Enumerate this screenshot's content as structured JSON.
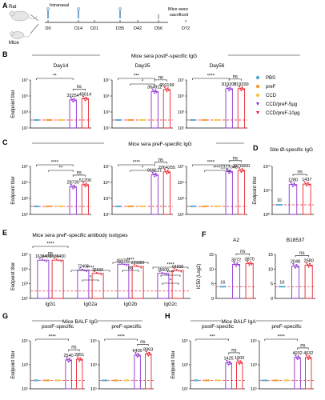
{
  "colors": {
    "PBS": "#57a9d4",
    "preF": "#f39a2b",
    "CCD": "#f2c84b",
    "CCD/preF-5μg": "#8e2fd1",
    "CCD/preF-10μg": "#e8242f",
    "lod": "#e8242f"
  },
  "panelA": {
    "letter": "A",
    "route": "Intranasal",
    "rat_label": "Rat",
    "mice_label": "Mice",
    "days": [
      "D0",
      "D14",
      "D21",
      "D35",
      "D42",
      "D56",
      "D72"
    ],
    "sacrificed": "Mice were\nsacrificed"
  },
  "panelB": {
    "letter": "B",
    "title": "Mice sera postF-specific IgG",
    "ylabel": "Endpoint titer",
    "legend": [
      "PBS",
      "preF",
      "CCD",
      "CCD/preF-5μg",
      "CCD/preF-10μg"
    ]
  },
  "panelC": {
    "letter": "C",
    "title": "Mice sera preF-specific IgG",
    "ylabel": "Endpoint titer"
  },
  "panelD": {
    "letter": "D",
    "title": "Site Ø-specific IgG",
    "ylabel": "Endpoint titer"
  },
  "panelE": {
    "letter": "E",
    "title": "Mice sera preF-specific antibody isotypes",
    "ylabel": "Endpoint titer"
  },
  "panelF": {
    "letter": "F",
    "ylabel": "IC50 (Log2)"
  },
  "panelG": {
    "letter": "G",
    "title": "Mice BALF IgG",
    "ylabel": "Endpoint titer"
  },
  "panelH": {
    "letter": "H",
    "title": "Mice BALF IgA",
    "ylabel": "Endpoint titer"
  },
  "chart_data": [
    {
      "id": "B1",
      "type": "bar",
      "title": "Day14",
      "categories": [
        "PBS",
        "preF",
        "CCD",
        "CCD/preF-5μg",
        "CCD/preF-10μg"
      ],
      "values": [
        100,
        100,
        100,
        32254,
        45614
      ],
      "ylim": [
        10,
        10000000
      ],
      "log": true,
      "yticks": [
        "10¹",
        "10³",
        "10⁵",
        "10⁷"
      ],
      "value_labels": [
        "",
        "",
        "",
        "32254",
        "45614"
      ],
      "lod": 100,
      "sig": [
        {
          "a": 0,
          "b": 3,
          "label": "**"
        },
        {
          "a": 3,
          "b": 4,
          "label": "ns"
        }
      ]
    },
    {
      "id": "B2",
      "type": "bar",
      "title": "Day35",
      "categories": [
        "PBS",
        "preF",
        "CCD",
        "CCD/preF-5μg",
        "CCD/preF-10μg"
      ],
      "values": [
        100,
        100,
        100,
        364912,
        650199
      ],
      "ylim": [
        10,
        10000000
      ],
      "log": true,
      "yticks": [
        "10¹",
        "10³",
        "10⁵",
        "10⁷"
      ],
      "value_labels": [
        "",
        "",
        "",
        "364912",
        "650199"
      ],
      "lod": 100,
      "sig": [
        {
          "a": 0,
          "b": 3,
          "label": "***"
        },
        {
          "a": 1,
          "b": 3,
          "label": "*"
        },
        {
          "a": 3,
          "b": 4,
          "label": "ns"
        }
      ]
    },
    {
      "id": "B3",
      "type": "bar",
      "title": "Day56",
      "categories": [
        "PBS",
        "preF",
        "CCD",
        "CCD/preF-5μg",
        "CCD/preF-10μg"
      ],
      "values": [
        100,
        100,
        100,
        819200,
        819200
      ],
      "ylim": [
        10,
        10000000
      ],
      "log": true,
      "yticks": [
        "10¹",
        "10³",
        "10⁵",
        "10⁷"
      ],
      "value_labels": [
        "",
        "",
        "",
        "819200",
        "819200"
      ],
      "lod": 100,
      "sig": [
        {
          "a": 0,
          "b": 3,
          "label": "****"
        },
        {
          "a": 3,
          "b": 4,
          "label": "ns"
        }
      ]
    },
    {
      "id": "C1",
      "type": "bar",
      "categories": [
        "PBS",
        "preF",
        "CCD",
        "CCD/preF-5μg",
        "CCD/preF-10μg"
      ],
      "values": [
        100,
        100,
        100,
        28735,
        51200
      ],
      "ylim": [
        10,
        10000000
      ],
      "log": true,
      "yticks": [
        "10¹",
        "10³",
        "10⁵",
        "10⁷"
      ],
      "value_labels": [
        "",
        "",
        "",
        "28735",
        "51200"
      ],
      "lod": 100,
      "sig": [
        {
          "a": 0,
          "b": 3,
          "label": "****"
        },
        {
          "a": 1,
          "b": 3,
          "label": "**"
        },
        {
          "a": 3,
          "b": 4,
          "label": "ns"
        }
      ]
    },
    {
      "id": "C2",
      "type": "bar",
      "categories": [
        "PBS",
        "preF",
        "CCD",
        "CCD/preF-5μg",
        "CCD/preF-10μg"
      ],
      "values": [
        100,
        100,
        100,
        919121,
        2064255
      ],
      "ylim": [
        10,
        10000000
      ],
      "log": true,
      "yticks": [
        "10¹",
        "10³",
        "10⁵",
        "10⁷"
      ],
      "value_labels": [
        "",
        "",
        "",
        "919121",
        "2064255"
      ],
      "lod": 100,
      "sig": [
        {
          "a": 0,
          "b": 3,
          "label": "****"
        },
        {
          "a": 1,
          "b": 3,
          "label": "*"
        },
        {
          "a": 3,
          "b": 4,
          "label": "ns"
        }
      ]
    },
    {
      "id": "C3",
      "type": "bar",
      "categories": [
        "PBS",
        "preF",
        "CCD",
        "CCD/preF-5μg",
        "CCD/preF-10μg"
      ],
      "values": [
        100,
        100,
        100,
        2317048,
        3276800
      ],
      "ylim": [
        10,
        10000000
      ],
      "log": true,
      "yticks": [
        "10¹",
        "10³",
        "10⁵",
        "10⁷"
      ],
      "value_labels": [
        "",
        "",
        "",
        "2317048",
        "3276800"
      ],
      "lod": 100,
      "sig": [
        {
          "a": 0,
          "b": 3,
          "label": "****"
        },
        {
          "a": 1,
          "b": 3,
          "label": "****"
        },
        {
          "a": 3,
          "b": 4,
          "label": "ns"
        }
      ]
    },
    {
      "id": "D",
      "type": "bar",
      "categories": [
        "PBS",
        "CCD/preF-5μg",
        "CCD/preF-10μg"
      ],
      "values": [
        10,
        1280,
        1437
      ],
      "ylim": [
        1,
        100000
      ],
      "log": true,
      "yticks": [
        "10⁰",
        "10²",
        "10⁴"
      ],
      "value_labels": [
        "10",
        "1280",
        "1437"
      ],
      "lod": 10,
      "sig": [
        {
          "a": 1,
          "b": 2,
          "label": "ns"
        }
      ]
    },
    {
      "id": "E",
      "type": "bar",
      "categories": [
        "IgG1",
        "IgG2a",
        "IgG2b",
        "IgG2c"
      ],
      "series_names": [
        "CCD/preF-5μg",
        "CCD/preF-10μg"
      ],
      "values": [
        [
          1638400,
          1638400
        ],
        [
          72408,
          25600
        ],
        [
          459760,
          229880
        ],
        [
          25600,
          64508
        ]
      ],
      "ylim": [
        10,
        10000000
      ],
      "log": true,
      "yticks": [
        "10¹",
        "10³",
        "10⁵",
        "10⁷"
      ],
      "value_labels": [
        [
          "1638400",
          "1638400"
        ],
        [
          "72408",
          "25600"
        ],
        [
          "459760",
          "229880"
        ],
        [
          "25600",
          "64508"
        ]
      ],
      "lod": 100,
      "sig_labels": [
        "****",
        "ns",
        "****",
        "*",
        "****",
        "ns",
        "****",
        "****",
        "*"
      ]
    },
    {
      "id": "F1",
      "type": "bar",
      "title": "A2",
      "categories": [
        "PBS",
        "CCD/preF-5μg",
        "CCD/preF-10μg"
      ],
      "values": [
        16,
        3072,
        3870
      ],
      "ylim": [
        0,
        15
      ],
      "log2": true,
      "yticks": [
        "0",
        "5",
        "10",
        "15"
      ],
      "value_labels": [
        "16",
        "3072",
        "3870"
      ],
      "lod": 16,
      "sig": [
        {
          "a": 1,
          "b": 2,
          "label": "ns"
        }
      ]
    },
    {
      "id": "F2",
      "type": "bar",
      "title": "B18537",
      "categories": [
        "PBS",
        "CCD/preF-5μg",
        "CCD/preF-10μg"
      ],
      "values": [
        16,
        2048,
        2580
      ],
      "ylim": [
        0,
        15
      ],
      "log2": true,
      "yticks": [
        "0",
        "5",
        "10",
        "15"
      ],
      "value_labels": [
        "16",
        "2048",
        "2580"
      ],
      "lod": 16,
      "sig": [
        {
          "a": 1,
          "b": 2,
          "label": "ns"
        }
      ]
    },
    {
      "id": "G1",
      "type": "bar",
      "title": "postF-specific",
      "categories": [
        "PBS",
        "preF",
        "CCD",
        "CCD/preF-5μg",
        "CCD/preF-10μg"
      ],
      "values": [
        50,
        50,
        50,
        2540,
        2851
      ],
      "ylim": [
        10,
        100000
      ],
      "log": true,
      "yticks": [
        "10¹",
        "10³",
        "10⁵"
      ],
      "value_labels": [
        "",
        "",
        "",
        "2540",
        "2851"
      ],
      "lod": 50,
      "sig": [
        {
          "a": 0,
          "b": 3,
          "label": "****"
        },
        {
          "a": 3,
          "b": 4,
          "label": "ns"
        }
      ]
    },
    {
      "id": "G2",
      "type": "bar",
      "title": "preF-specific",
      "categories": [
        "PBS",
        "preF",
        "CCD",
        "CCD/preF-5μg",
        "CCD/preF-10μg"
      ],
      "values": [
        50,
        50,
        50,
        6400,
        8063
      ],
      "ylim": [
        10,
        100000
      ],
      "log": true,
      "yticks": [
        "10¹",
        "10³",
        "10⁵"
      ],
      "value_labels": [
        "",
        "",
        "",
        "6400",
        "8063"
      ],
      "lod": 50,
      "sig": [
        {
          "a": 0,
          "b": 3,
          "label": "****"
        },
        {
          "a": 3,
          "b": 4,
          "label": "ns"
        }
      ]
    },
    {
      "id": "H1",
      "type": "bar",
      "title": "postF-specific",
      "categories": [
        "PBS",
        "preF",
        "CCD",
        "CCD/preF-5μg",
        "CCD/preF-10μg"
      ],
      "values": [
        50,
        50,
        50,
        1425,
        1600
      ],
      "ylim": [
        10,
        100000
      ],
      "log": true,
      "yticks": [
        "10¹",
        "10³",
        "10⁵"
      ],
      "value_labels": [
        "",
        "",
        "",
        "1425",
        "1600"
      ],
      "lod": 50,
      "sig": [
        {
          "a": 0,
          "b": 3,
          "label": "***"
        },
        {
          "a": 3,
          "b": 4,
          "label": "ns"
        }
      ]
    },
    {
      "id": "H2",
      "type": "bar",
      "title": "preF-specific",
      "categories": [
        "PBS",
        "preF",
        "CCD",
        "CCD/preF-5μg",
        "CCD/preF-10μg"
      ],
      "values": [
        50,
        50,
        50,
        4032,
        4032
      ],
      "ylim": [
        10,
        100000
      ],
      "log": true,
      "yticks": [
        "10¹",
        "10³",
        "10⁵"
      ],
      "value_labels": [
        "",
        "",
        "",
        "4032",
        "4032"
      ],
      "lod": 50,
      "sig": [
        {
          "a": 0,
          "b": 3,
          "label": "****"
        },
        {
          "a": 3,
          "b": 4,
          "label": "ns"
        }
      ]
    }
  ]
}
